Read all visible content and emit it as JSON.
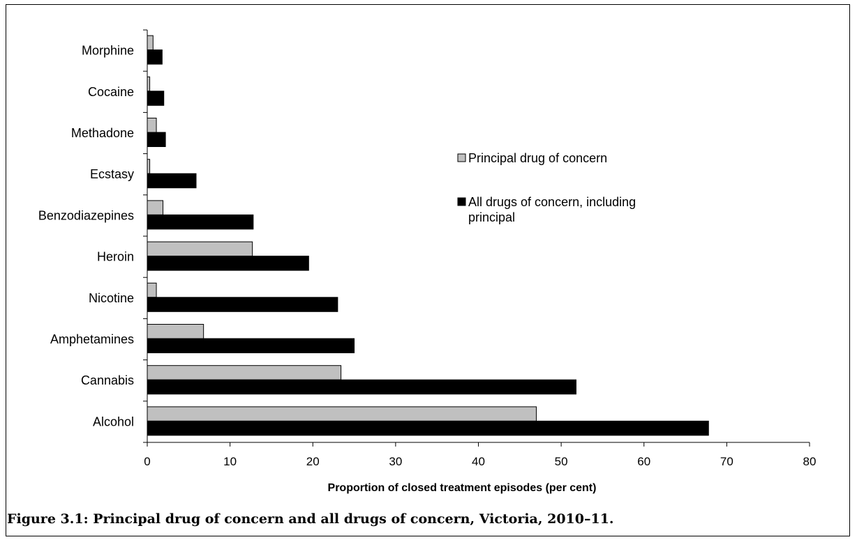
{
  "caption": "Figure 3.1: Principal drug of concern and all drugs of concern, Victoria, 2010–11.",
  "chart_data": {
    "type": "bar",
    "orientation": "horizontal",
    "categories": [
      "Alcohol",
      "Cannabis",
      "Amphetamines",
      "Nicotine",
      "Heroin",
      "Benzodiazepines",
      "Ecstasy",
      "Methadone",
      "Cocaine",
      "Morphine"
    ],
    "series": [
      {
        "name": "Principal drug of concern",
        "color": "#c0c0c0",
        "values": [
          47.0,
          23.4,
          6.8,
          1.1,
          12.7,
          1.9,
          0.3,
          1.1,
          0.3,
          0.7
        ]
      },
      {
        "name": "All drugs of concern, including principal",
        "color": "#000000",
        "values": [
          67.8,
          51.8,
          25.0,
          23.0,
          19.5,
          12.8,
          5.9,
          2.2,
          2.0,
          1.8
        ]
      }
    ],
    "xlabel": "Proportion of closed treatment episodes (per cent)",
    "ylabel": "",
    "xlim": [
      0,
      80
    ],
    "xticks": [
      "0",
      "10",
      "20",
      "30",
      "40",
      "50",
      "60",
      "70",
      "80"
    ],
    "grid": false,
    "legend_position": "right"
  }
}
